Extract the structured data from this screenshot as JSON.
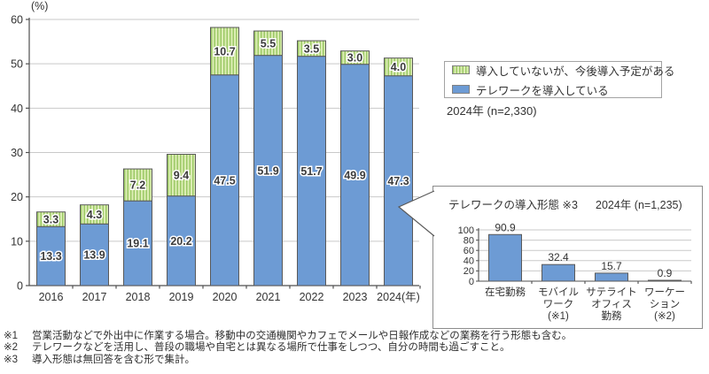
{
  "colors": {
    "blue": "#6D9BD4",
    "green_bg": "#DCEDB4",
    "green_stripe": "#9CC966",
    "bar_border": "#5a5a5a",
    "grid": "#c9c9c9",
    "axis": "#4f4f4f",
    "text": "#333333",
    "value_label": "#3c3c3c"
  },
  "chart_data": [
    {
      "type": "bar",
      "stacked": true,
      "unit_label": "(%)",
      "categories": [
        "2016",
        "2017",
        "2018",
        "2019",
        "2020",
        "2021",
        "2022",
        "2023",
        "2024(年)"
      ],
      "series": [
        {
          "name": "テレワークを導入している",
          "values": [
            13.3,
            13.9,
            19.1,
            20.2,
            47.5,
            51.9,
            51.7,
            49.9,
            47.3
          ]
        },
        {
          "name": "導入していないが、今後導入予定がある",
          "values": [
            3.3,
            4.3,
            7.2,
            9.4,
            10.7,
            5.5,
            3.5,
            3.0,
            4.0
          ]
        }
      ],
      "ylim": [
        0,
        60
      ],
      "yticks": [
        0,
        10,
        20,
        30,
        40,
        50,
        60
      ],
      "grid": true,
      "legend_position": "right",
      "sample_label": "2024年 (n=2,330)"
    },
    {
      "type": "bar",
      "title": "テレワークの導入形態 ※3",
      "sample_label": "2024年 (n=1,235)",
      "categories": [
        [
          "在宅勤務"
        ],
        [
          "モバイル",
          "ワーク",
          "(※1)"
        ],
        [
          "サテライト",
          "オフィス",
          "勤務"
        ],
        [
          "ワーケー",
          "ション",
          "(※2)"
        ]
      ],
      "values": [
        90.9,
        32.4,
        15.7,
        0.9
      ],
      "ylim": [
        0,
        100
      ],
      "yticks": [
        0,
        20,
        40,
        60,
        80,
        100
      ],
      "grid": true
    }
  ],
  "legend": {
    "items": [
      {
        "label": "導入していないが、今後導入予定がある",
        "swatch": "green-hatch"
      },
      {
        "label": "テレワークを導入している",
        "swatch": "blue"
      }
    ]
  },
  "footnotes": [
    {
      "marker": "※1",
      "text": "営業活動などで外出中に作業する場合。移動中の交通機関やカフェでメールや日報作成などの業務を行う形態も含む。"
    },
    {
      "marker": "※2",
      "text": "テレワークなどを活用し、普段の職場や自宅とは異なる場所で仕事をしつつ、自分の時間も過ごすこと。"
    },
    {
      "marker": "※3",
      "text": "導入形態は無回答を含む形で集計。"
    }
  ]
}
